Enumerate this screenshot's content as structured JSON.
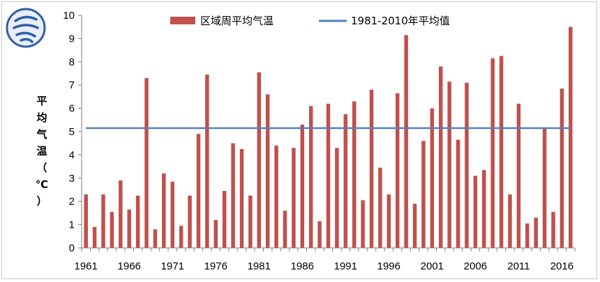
{
  "chart_data": {
    "type": "bar",
    "title": "",
    "xlabel": "",
    "ylabel": "平均气温（℃）",
    "ylim": [
      0,
      10
    ],
    "yticks": [
      "0",
      "1",
      "2",
      "3",
      "4",
      "5",
      "6",
      "7",
      "8",
      "9",
      "10"
    ],
    "xtick_labels": [
      "1961",
      "1966",
      "1971",
      "1976",
      "1981",
      "1986",
      "1991",
      "1996",
      "2001",
      "2006",
      "2011",
      "2016"
    ],
    "legend": {
      "placement": "top-center",
      "bar_label": "区域周平均气温",
      "line_label": "1981-2010年平均值"
    },
    "grid": false,
    "series": [
      {
        "name": "区域周平均气温",
        "type": "bar",
        "color": "#c0504d",
        "x": [
          1961,
          1962,
          1963,
          1964,
          1965,
          1966,
          1967,
          1968,
          1969,
          1970,
          1971,
          1972,
          1973,
          1974,
          1975,
          1976,
          1977,
          1978,
          1979,
          1980,
          1981,
          1982,
          1983,
          1984,
          1985,
          1986,
          1987,
          1988,
          1989,
          1990,
          1991,
          1992,
          1993,
          1994,
          1995,
          1996,
          1997,
          1998,
          1999,
          2000,
          2001,
          2002,
          2003,
          2004,
          2005,
          2006,
          2007,
          2008,
          2009,
          2010,
          2011,
          2012,
          2013,
          2014,
          2015,
          2016,
          2017
        ],
        "values": [
          2.3,
          0.9,
          2.3,
          1.55,
          2.9,
          1.65,
          2.25,
          7.3,
          0.8,
          3.2,
          2.85,
          0.95,
          2.25,
          4.9,
          7.45,
          1.2,
          2.45,
          4.5,
          4.25,
          2.25,
          7.55,
          6.6,
          4.4,
          1.6,
          4.3,
          5.3,
          6.1,
          1.15,
          6.2,
          4.3,
          5.75,
          6.3,
          2.05,
          6.8,
          3.45,
          2.3,
          6.65,
          9.15,
          1.9,
          4.6,
          6.0,
          7.8,
          7.15,
          4.65,
          7.1,
          3.1,
          3.35,
          8.15,
          8.25,
          2.3,
          6.2,
          1.05,
          1.3,
          5.15,
          1.55,
          6.85,
          9.5
        ]
      },
      {
        "name": "1981-2010年平均值",
        "type": "line",
        "color": "#4f81bd",
        "value": 5.15
      }
    ]
  }
}
